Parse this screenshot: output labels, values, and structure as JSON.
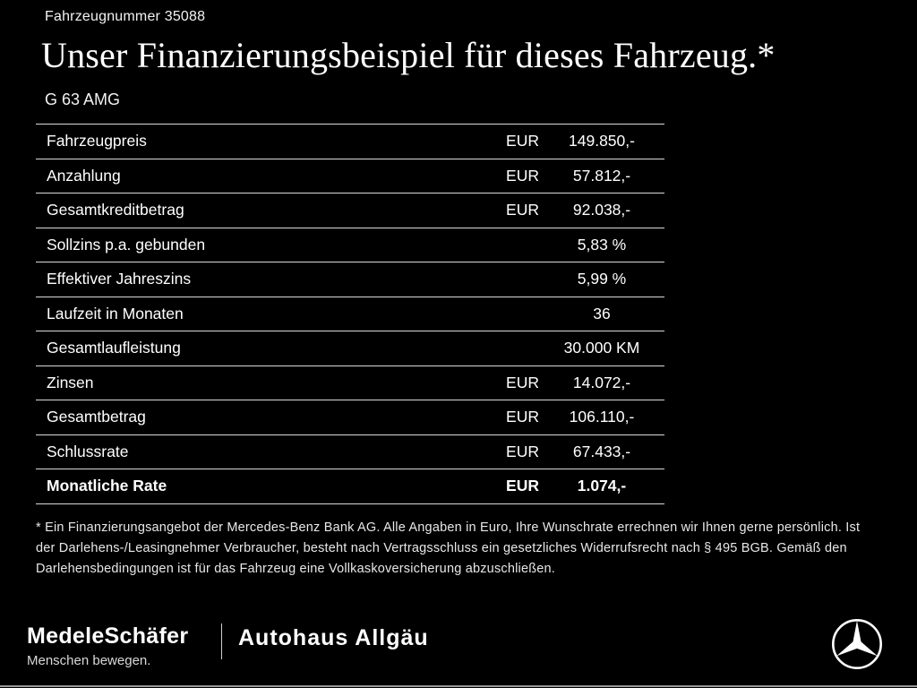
{
  "colors": {
    "background": "#000000",
    "text": "#ffffff",
    "table_line": "#d9d9d9"
  },
  "header": {
    "vehicle_number": "Fahrzeugnummer 35088",
    "title": "Unser Finanzierungsbeispiel für dieses Fahrzeug.*",
    "model": "G 63 AMG"
  },
  "table": {
    "rows": [
      {
        "label": "Fahrzeugpreis",
        "currency": "EUR",
        "value": "149.850,-",
        "bold": false
      },
      {
        "label": "Anzahlung",
        "currency": "EUR",
        "value": "57.812,-",
        "bold": false
      },
      {
        "label": "Gesamtkreditbetrag",
        "currency": "EUR",
        "value": "92.038,-",
        "bold": false
      },
      {
        "label": "Sollzins p.a. gebunden",
        "currency": "",
        "value": "5,83 %",
        "bold": false
      },
      {
        "label": "Effektiver Jahreszins",
        "currency": "",
        "value": "5,99 %",
        "bold": false
      },
      {
        "label": "Laufzeit in Monaten",
        "currency": "",
        "value": "36",
        "bold": false
      },
      {
        "label": "Gesamtlaufleistung",
        "currency": "",
        "value": "30.000 KM",
        "bold": false
      },
      {
        "label": "Zinsen",
        "currency": "EUR",
        "value": "14.072,-",
        "bold": false
      },
      {
        "label": "Gesamtbetrag",
        "currency": "EUR",
        "value": "106.110,-",
        "bold": false
      },
      {
        "label": "Schlussrate",
        "currency": "EUR",
        "value": "67.433,-",
        "bold": false
      },
      {
        "label": "Monatliche Rate",
        "currency": "EUR",
        "value": "1.074,-",
        "bold": true
      }
    ]
  },
  "footnote": "* Ein Finanzierungsangebot der Mercedes-Benz Bank AG. Alle Angaben in Euro, Ihre Wunschrate errechnen wir Ihnen gerne persönlich. Ist der Darlehens-/Leasingnehmer Verbraucher, besteht nach Vertragsschluss ein gesetzliches Widerrufsrecht nach § 495 BGB. Gemäß den Darlehensbedingungen ist für das Fahrzeug eine Vollkaskoversicherung abzuschließen.",
  "footer": {
    "dealer1_name": "MedeleSchäfer",
    "dealer1_tagline": "Menschen bewegen.",
    "dealer2_name": "Autohaus Allgäu",
    "brand_icon": "mercedes-star-icon"
  }
}
